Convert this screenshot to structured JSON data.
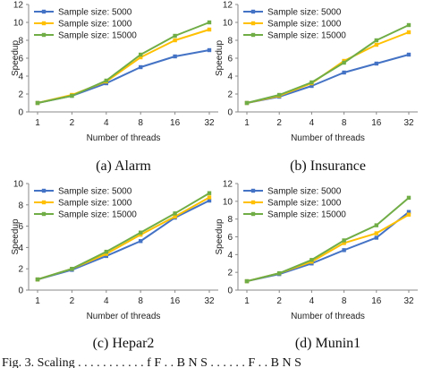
{
  "series_colors": [
    "#4472c4",
    "#ffc000",
    "#70ad47"
  ],
  "chart_data": [
    {
      "type": "line",
      "caption": "(a)  Alarm",
      "xlabel": "Number of threads",
      "ylabel": "Speedup",
      "x": [
        1,
        2,
        4,
        8,
        16,
        32
      ],
      "yticks": [
        0,
        2,
        4,
        6,
        8,
        10,
        12
      ],
      "ylim": [
        0,
        12
      ],
      "legend_position": "top-left",
      "series": [
        {
          "name": "Sample size: 5000",
          "values": [
            1.0,
            1.8,
            3.2,
            5.0,
            6.2,
            6.9
          ]
        },
        {
          "name": "Sample size: 1000",
          "values": [
            1.0,
            1.9,
            3.4,
            6.1,
            8.0,
            9.2
          ]
        },
        {
          "name": "Sample size: 15000",
          "values": [
            1.0,
            1.8,
            3.5,
            6.4,
            8.5,
            10.0
          ]
        }
      ]
    },
    {
      "type": "line",
      "caption": "(b)  Insurance",
      "xlabel": "Number of threads",
      "ylabel": "Speedup",
      "x": [
        1,
        2,
        4,
        8,
        16,
        32
      ],
      "yticks": [
        0,
        2,
        4,
        6,
        8,
        10,
        12
      ],
      "ylim": [
        0,
        12
      ],
      "legend_position": "top-left",
      "series": [
        {
          "name": "Sample size: 5000",
          "values": [
            1.0,
            1.7,
            2.9,
            4.4,
            5.4,
            6.4
          ]
        },
        {
          "name": "Sample size: 1000",
          "values": [
            1.0,
            1.8,
            3.2,
            5.7,
            7.5,
            8.9
          ]
        },
        {
          "name": "Sample size: 15000",
          "values": [
            1.0,
            1.9,
            3.3,
            5.5,
            8.0,
            9.7
          ]
        }
      ]
    },
    {
      "type": "line",
      "caption": "(c)  Hepar2",
      "xlabel": "Number of threads",
      "ylabel": "Speedup",
      "x": [
        1,
        2,
        4,
        8,
        16,
        32
      ],
      "yticks": [
        0,
        2,
        4,
        6,
        8,
        10
      ],
      "ylim": [
        0,
        10
      ],
      "legend_position": "top-left",
      "series": [
        {
          "name": "Sample size: 5000",
          "values": [
            1.0,
            1.9,
            3.2,
            4.6,
            6.8,
            8.4
          ]
        },
        {
          "name": "Sample size: 1000",
          "values": [
            1.0,
            2.0,
            3.4,
            5.2,
            6.9,
            8.7
          ]
        },
        {
          "name": "Sample size: 15000",
          "values": [
            1.0,
            2.0,
            3.6,
            5.4,
            7.2,
            9.1
          ]
        }
      ]
    },
    {
      "type": "line",
      "caption": "(d)  Munin1",
      "xlabel": "Number of threads",
      "ylabel": "Speedup",
      "x": [
        1,
        2,
        4,
        8,
        16,
        32
      ],
      "yticks": [
        0,
        2,
        4,
        6,
        8,
        10,
        12
      ],
      "ylim": [
        0,
        12
      ],
      "legend_position": "top-left",
      "series": [
        {
          "name": "Sample size: 5000",
          "values": [
            1.0,
            1.8,
            3.0,
            4.5,
            5.9,
            8.8
          ]
        },
        {
          "name": "Sample size: 1000",
          "values": [
            1.0,
            1.9,
            3.2,
            5.3,
            6.4,
            8.5
          ]
        },
        {
          "name": "Sample size: 15000",
          "values": [
            1.0,
            1.9,
            3.4,
            5.6,
            7.3,
            10.4
          ]
        }
      ]
    }
  ],
  "footer_text": "Fig. 3.  Scaling . . . . . . . . . . .   f  F . . B N S  . . . . . .  F . . B N S"
}
